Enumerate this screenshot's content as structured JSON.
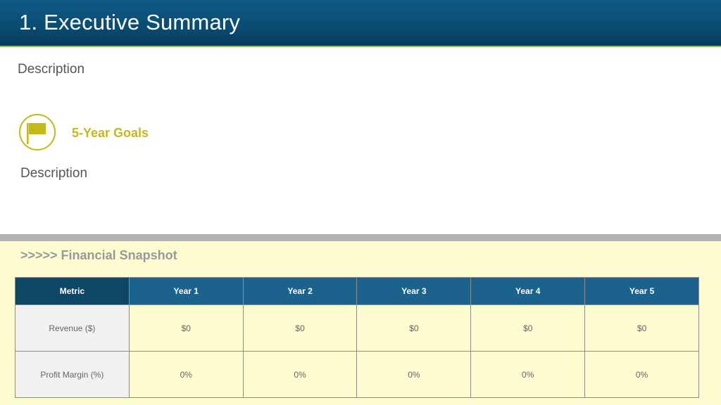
{
  "header": {
    "title": "1. Executive Summary"
  },
  "summary": {
    "description": "Description"
  },
  "goals": {
    "icon": "flag-icon",
    "title": "5-Year Goals",
    "description": "Description"
  },
  "snapshot": {
    "title": ">>>>> Financial Snapshot",
    "columns": [
      "Metric",
      "Year 1",
      "Year 2",
      "Year 3",
      "Year 4",
      "Year 5"
    ],
    "rows": [
      {
        "label": "Revenue ($)",
        "values": [
          "$0",
          "$0",
          "$0",
          "$0",
          "$0"
        ]
      },
      {
        "label": "Profit Margin (%)",
        "values": [
          "0%",
          "0%",
          "0%",
          "0%",
          "0%"
        ]
      }
    ]
  },
  "colors": {
    "header_blue": "#0a4d74",
    "accent_yellow": "#c4b81a",
    "table_header": "#1b628d",
    "panel_bg": "#fdfbd0"
  }
}
